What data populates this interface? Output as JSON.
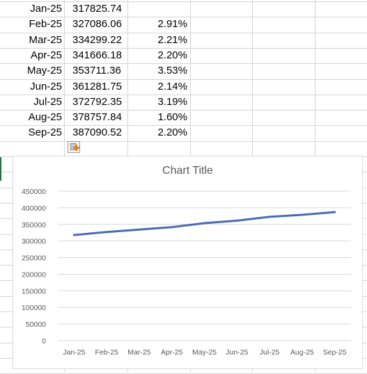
{
  "rows": [
    {
      "date": "Jan-25",
      "value": "317825.74",
      "pct": ""
    },
    {
      "date": "Feb-25",
      "value": "327086.06",
      "pct": "2.91%"
    },
    {
      "date": "Mar-25",
      "value": "334299.22",
      "pct": "2.21%"
    },
    {
      "date": "Apr-25",
      "value": "341666.18",
      "pct": "2.20%"
    },
    {
      "date": "May-25",
      "value": "353711.36",
      "pct": "3.53%"
    },
    {
      "date": "Jun-25",
      "value": "361281.75",
      "pct": "2.14%"
    },
    {
      "date": "Jul-25",
      "value": "372792.35",
      "pct": "3.19%"
    },
    {
      "date": "Aug-25",
      "value": "378757.84",
      "pct": "1.60%"
    },
    {
      "date": "Sep-25",
      "value": "387090.52",
      "pct": "2.20%"
    }
  ],
  "paste_options_icon": "paste-options-icon",
  "chart_data": {
    "type": "line",
    "title": "Chart Title",
    "categories": [
      "Jan-25",
      "Feb-25",
      "Mar-25",
      "Apr-25",
      "May-25",
      "Jun-25",
      "Jul-25",
      "Aug-25",
      "Sep-25"
    ],
    "series": [
      {
        "values": [
          317825.74,
          327086.06,
          334299.22,
          341666.18,
          353711.36,
          361281.75,
          372792.35,
          378757.84,
          387090.52
        ],
        "color": "#4a6bb5"
      }
    ],
    "ylim": [
      0,
      450000
    ],
    "yticks": [
      "0",
      "50000",
      "100000",
      "150000",
      "200000",
      "250000",
      "300000",
      "350000",
      "400000",
      "450000"
    ],
    "grid": true,
    "legend": "none",
    "xlabel": "",
    "ylabel": ""
  }
}
